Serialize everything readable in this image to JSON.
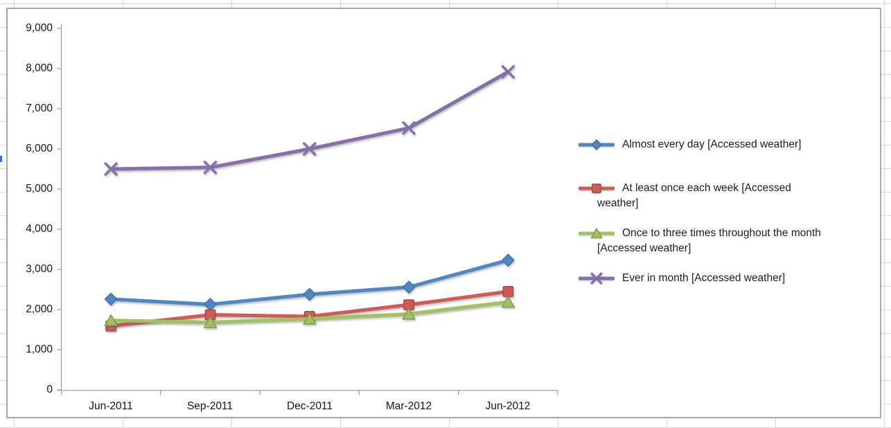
{
  "chart_data": {
    "type": "line",
    "title": "",
    "categories": [
      "Jun-2011",
      "Sep-2011",
      "Dec-2011",
      "Mar-2012",
      "Jun-2012"
    ],
    "series": [
      {
        "name": "Almost every day [Accessed weather]",
        "legend_lines": [
          "Almost every day [Accessed weather]"
        ],
        "marker": "diamond",
        "color": "#4F86C4",
        "values": [
          2260,
          2130,
          2380,
          2560,
          3230
        ]
      },
      {
        "name": "At least once each week [Accessed weather]",
        "legend_lines": [
          "At least once each week [Accessed",
          "weather]"
        ],
        "marker": "square",
        "color": "#CE5B55",
        "values": [
          1590,
          1870,
          1830,
          2120,
          2450
        ]
      },
      {
        "name": "Once to three times throughout the month [Accessed weather]",
        "legend_lines": [
          "Once to three times throughout the month",
          "[Accessed weather]"
        ],
        "marker": "triangle",
        "color": "#A2C162",
        "values": [
          1730,
          1680,
          1770,
          1890,
          2190
        ]
      },
      {
        "name": "Ever in month [Accessed weather]",
        "legend_lines": [
          "Ever in month [Accessed weather]"
        ],
        "marker": "x",
        "color": "#8470A8",
        "values": [
          5500,
          5540,
          6000,
          6520,
          7920
        ]
      }
    ],
    "ylim": [
      0,
      9000
    ],
    "ytick_step": 1000,
    "ytick_labels": [
      "0",
      "1,000",
      "2,000",
      "3,000",
      "4,000",
      "5,000",
      "6,000",
      "7,000",
      "8,000",
      "9,000"
    ],
    "xlabel": "",
    "ylabel": "",
    "grid": false,
    "legend_position": "right",
    "style": {
      "axis_color": "#A6A6A6",
      "tick_label_color": "#141414",
      "legend_text_color": "#1C1C1C",
      "frame_border_color": "#A7A7A7",
      "sheet_grid_color": "#D6D6D6"
    }
  }
}
